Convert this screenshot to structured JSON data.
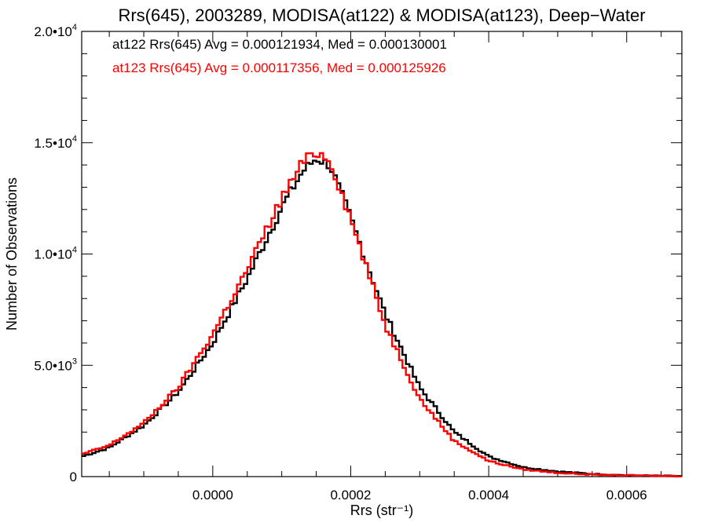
{
  "chart_data": {
    "type": "line",
    "title": "Rrs(645), 2003289, MODISA(at122) & MODISA(at123), Deep−Water",
    "xlabel": "Rrs (str⁻¹)",
    "ylabel": "Number of Observations",
    "xlim": [
      -0.00019,
      0.00068
    ],
    "ylim": [
      0,
      20000
    ],
    "grid": false,
    "legend_position": "top-left",
    "x_ticks": [
      {
        "value": 0.0,
        "label": "0.0000"
      },
      {
        "value": 0.0002,
        "label": "0.0002"
      },
      {
        "value": 0.0004,
        "label": "0.0004"
      },
      {
        "value": 0.0006,
        "label": "0.0006"
      }
    ],
    "y_ticks": [
      {
        "value": 0,
        "mant": "0",
        "exp": ""
      },
      {
        "value": 5000,
        "mant": "5.0•",
        "exp": "3"
      },
      {
        "value": 10000,
        "mant": "1.0•",
        "exp": "4"
      },
      {
        "value": 15000,
        "mant": "1.5•",
        "exp": "4"
      },
      {
        "value": 20000,
        "mant": "2.0•",
        "exp": "4"
      }
    ],
    "series": [
      {
        "name": "at122",
        "legend": "at122 Rrs(645) Avg = 0.000121934, Med = 0.000130001",
        "color": "#000000",
        "x": [
          -0.00019,
          -0.00015,
          -0.0001,
          -5e-05,
          0.0,
          5e-05,
          0.0001,
          0.00013,
          0.00015,
          0.00017,
          0.0002,
          0.00025,
          0.0003,
          0.00035,
          0.0004,
          0.00045,
          0.0005,
          0.00055,
          0.0006,
          0.00068
        ],
        "y": [
          900,
          1300,
          2300,
          3800,
          6000,
          8900,
          12100,
          13700,
          14300,
          14000,
          11600,
          7300,
          4000,
          2000,
          900,
          420,
          230,
          120,
          60,
          20
        ]
      },
      {
        "name": "at123",
        "legend": "at123 Rrs(645) Avg = 0.000117356, Med = 0.000125926",
        "color": "#ff0000",
        "x": [
          -0.00019,
          -0.00015,
          -0.0001,
          -5e-05,
          0.0,
          5e-05,
          0.0001,
          0.00013,
          0.00015,
          0.00017,
          0.0002,
          0.00025,
          0.0003,
          0.00035,
          0.0004,
          0.00045,
          0.0005,
          0.00055,
          0.0006,
          0.00068
        ],
        "y": [
          1000,
          1400,
          2400,
          4000,
          6400,
          9300,
          12500,
          14100,
          14600,
          14200,
          11600,
          6800,
          3500,
          1600,
          700,
          320,
          170,
          90,
          50,
          20
        ]
      }
    ]
  }
}
